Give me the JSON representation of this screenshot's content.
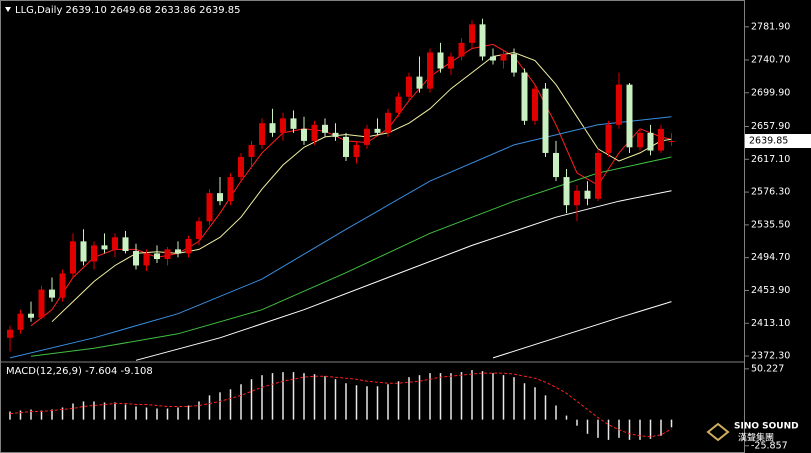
{
  "chart_data": [
    {
      "type": "candlestick",
      "title": "LLG,Daily  2639.10 2649.68 2633.86 2639.85",
      "up_color": "#e00000",
      "down_color": "#c8f0c0",
      "open": [
        2395,
        2405,
        2425,
        2420,
        2455,
        2445,
        2475,
        2515,
        2490,
        2510,
        2505,
        2520,
        2503,
        2485,
        2500,
        2493,
        2505,
        2500,
        2518,
        2540,
        2575,
        2565,
        2595,
        2620,
        2635,
        2662,
        2650,
        2668,
        2655,
        2640,
        2660,
        2650,
        2645,
        2620,
        2635,
        2655,
        2650,
        2675,
        2695,
        2720,
        2705,
        2750,
        2730,
        2745,
        2762,
        2785,
        2745,
        2740,
        2748,
        2725,
        2665,
        2705,
        2625,
        2595,
        2560,
        2578,
        2568,
        2625,
        2660,
        2710,
        2632,
        2650,
        2628,
        2639.1
      ],
      "high": [
        2410,
        2430,
        2440,
        2460,
        2470,
        2480,
        2525,
        2530,
        2515,
        2525,
        2525,
        2528,
        2512,
        2505,
        2510,
        2508,
        2515,
        2522,
        2545,
        2580,
        2595,
        2600,
        2625,
        2640,
        2668,
        2680,
        2675,
        2678,
        2670,
        2665,
        2668,
        2662,
        2650,
        2640,
        2660,
        2668,
        2680,
        2700,
        2725,
        2745,
        2755,
        2762,
        2750,
        2768,
        2790,
        2792,
        2755,
        2752,
        2755,
        2730,
        2710,
        2712,
        2640,
        2605,
        2585,
        2590,
        2630,
        2665,
        2725,
        2712,
        2655,
        2660,
        2660,
        2649.68
      ],
      "low": [
        2378,
        2400,
        2415,
        2418,
        2440,
        2440,
        2470,
        2485,
        2480,
        2500,
        2495,
        2500,
        2480,
        2478,
        2488,
        2485,
        2495,
        2495,
        2510,
        2535,
        2560,
        2560,
        2590,
        2605,
        2630,
        2645,
        2640,
        2650,
        2635,
        2635,
        2645,
        2640,
        2615,
        2612,
        2630,
        2648,
        2645,
        2670,
        2690,
        2700,
        2700,
        2725,
        2722,
        2740,
        2755,
        2740,
        2735,
        2730,
        2720,
        2660,
        2660,
        2620,
        2590,
        2550,
        2540,
        2560,
        2565,
        2620,
        2655,
        2625,
        2628,
        2622,
        2625,
        2633.86
      ],
      "close": [
        2405,
        2425,
        2420,
        2455,
        2445,
        2475,
        2515,
        2490,
        2510,
        2505,
        2520,
        2503,
        2485,
        2500,
        2493,
        2505,
        2500,
        2518,
        2540,
        2575,
        2565,
        2595,
        2620,
        2635,
        2662,
        2650,
        2668,
        2655,
        2640,
        2660,
        2650,
        2645,
        2620,
        2635,
        2655,
        2650,
        2675,
        2695,
        2720,
        2705,
        2750,
        2730,
        2745,
        2762,
        2785,
        2745,
        2740,
        2748,
        2725,
        2665,
        2705,
        2625,
        2595,
        2560,
        2578,
        2568,
        2625,
        2660,
        2710,
        2632,
        2650,
        2628,
        2655,
        2639.85
      ],
      "lines": [
        {
          "color": "#ff2020",
          "x": [
            2,
            4,
            6,
            8,
            10,
            12,
            14,
            16,
            18,
            20,
            22,
            24,
            26,
            28,
            30,
            32,
            34,
            36,
            38,
            40,
            42,
            44,
            46,
            48,
            50,
            52,
            54,
            56,
            58,
            60,
            62,
            63
          ],
          "values": [
            2410,
            2430,
            2470,
            2495,
            2505,
            2505,
            2495,
            2500,
            2515,
            2550,
            2590,
            2625,
            2650,
            2655,
            2652,
            2640,
            2638,
            2655,
            2690,
            2720,
            2738,
            2755,
            2760,
            2745,
            2710,
            2660,
            2600,
            2585,
            2625,
            2655,
            2645,
            2642
          ]
        },
        {
          "color": "#f0f0a0",
          "x": [
            4,
            6,
            8,
            10,
            12,
            14,
            16,
            18,
            20,
            22,
            24,
            26,
            28,
            30,
            32,
            34,
            36,
            38,
            40,
            42,
            44,
            46,
            48,
            50,
            52,
            54,
            56,
            58,
            60,
            62,
            63
          ],
          "values": [
            2415,
            2440,
            2465,
            2485,
            2500,
            2502,
            2500,
            2505,
            2520,
            2545,
            2580,
            2610,
            2632,
            2645,
            2648,
            2645,
            2650,
            2662,
            2680,
            2705,
            2725,
            2745,
            2750,
            2740,
            2710,
            2670,
            2630,
            2615,
            2625,
            2640,
            2642
          ]
        },
        {
          "color": "#3a8ee0",
          "x": [
            0,
            8,
            16,
            24,
            32,
            40,
            48,
            56,
            63
          ],
          "values": [
            2370,
            2395,
            2425,
            2468,
            2530,
            2590,
            2635,
            2660,
            2670
          ]
        },
        {
          "color": "#40c040",
          "x": [
            2,
            8,
            16,
            24,
            32,
            40,
            48,
            56,
            63
          ],
          "values": [
            2372,
            2382,
            2400,
            2430,
            2476,
            2525,
            2565,
            2600,
            2620
          ]
        },
        {
          "color": "#ffffff",
          "x": [
            12,
            20,
            28,
            36,
            44,
            52,
            58,
            63
          ],
          "values": [
            2367,
            2395,
            2430,
            2470,
            2510,
            2545,
            2565,
            2578
          ]
        },
        {
          "color": "#ffffff",
          "x": [
            46,
            52,
            58,
            63
          ],
          "values": [
            2370,
            2395,
            2420,
            2440
          ]
        }
      ],
      "ylim": [
        2364.9,
        2815.3
      ],
      "yticks": [
        {
          "value": 2781.9,
          "label": "2781.90"
        },
        {
          "value": 2740.7,
          "label": "2740.70"
        },
        {
          "value": 2699.9,
          "label": "2699.90"
        },
        {
          "value": 2657.9,
          "label": "2657.90"
        },
        {
          "value": 2617.1,
          "label": "2617.10"
        },
        {
          "value": 2576.3,
          "label": "2576.30"
        },
        {
          "value": 2535.5,
          "label": "2535.50"
        },
        {
          "value": 2494.7,
          "label": "2494.70"
        },
        {
          "value": 2453.9,
          "label": "2453.90"
        },
        {
          "value": 2413.1,
          "label": "2413.10"
        },
        {
          "value": 2372.3,
          "label": "2372.30"
        }
      ]
    },
    {
      "type": "macd",
      "title": "MACD(12,26,9) -7.604 -9.108",
      "color": "#e8e8e8",
      "signal_color": "#ff2020",
      "values": [
        8,
        9,
        10,
        9,
        10,
        12,
        16,
        18,
        18,
        17,
        17,
        15,
        13,
        12,
        11,
        11,
        12,
        14,
        18,
        24,
        27,
        30,
        35,
        40,
        44,
        46,
        47,
        47,
        46,
        45,
        43,
        40,
        36,
        34,
        33,
        33,
        35,
        38,
        42,
        44,
        46,
        46,
        46,
        47,
        49,
        48,
        46,
        44,
        42,
        36,
        32,
        24,
        14,
        4,
        -6,
        -14,
        -18,
        -20,
        -18,
        -20,
        -20,
        -19,
        -16,
        -7.604
      ],
      "signal": [
        6,
        7,
        8,
        8,
        9,
        10,
        11,
        13,
        14,
        15,
        16,
        16,
        15,
        15,
        14,
        13,
        13,
        13,
        14,
        16,
        18,
        21,
        24,
        28,
        32,
        35,
        38,
        40,
        42,
        43,
        43,
        42,
        41,
        40,
        38,
        37,
        36,
        36,
        37,
        38,
        40,
        42,
        43,
        44,
        45,
        46,
        46,
        46,
        45,
        43,
        41,
        37,
        32,
        26,
        18,
        10,
        2,
        -5,
        -10,
        -14,
        -16,
        -17,
        -15,
        -9.108
      ],
      "ylim": [
        -33,
        57
      ],
      "yticks": [
        50.227,
        -25.857
      ]
    }
  ],
  "logo": {
    "name": "SINO SOUND",
    "name_cn": "漢聲集團"
  }
}
